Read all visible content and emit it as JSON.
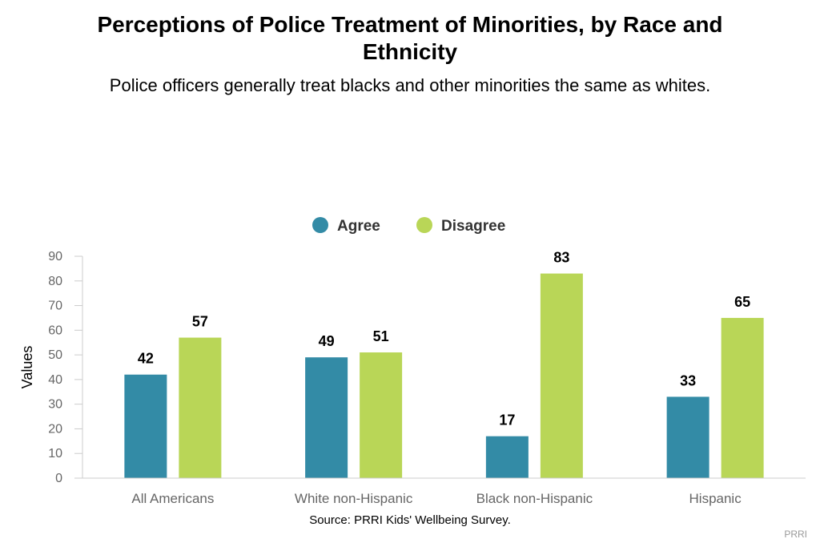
{
  "title": "Perceptions of Police Treatment of Minorities, by Race and Ethnicity",
  "subtitle": "Police officers generally treat blacks and other minorities the same as whites.",
  "source": "Source: PRRI Kids' Wellbeing Survey.",
  "credit": "PRRI",
  "chart_data": {
    "type": "bar",
    "title": "Perceptions of Police Treatment of Minorities, by Race and Ethnicity",
    "subtitle": "Police officers generally treat blacks and other minorities the same as whites.",
    "xlabel": "",
    "ylabel": "Values",
    "categories": [
      "All Americans",
      "White non-Hispanic",
      "Black non-Hispanic",
      "Hispanic"
    ],
    "series": [
      {
        "name": "Agree",
        "color": "#338ba6",
        "values": [
          42,
          49,
          17,
          33
        ]
      },
      {
        "name": "Disagree",
        "color": "#b9d657",
        "values": [
          57,
          51,
          83,
          65
        ]
      }
    ],
    "ylim": [
      0,
      90
    ],
    "yticks": [
      0,
      10,
      20,
      30,
      40,
      50,
      60,
      70,
      80,
      90
    ],
    "grid": false,
    "legend_position": "top-center",
    "data_labels": true
  }
}
